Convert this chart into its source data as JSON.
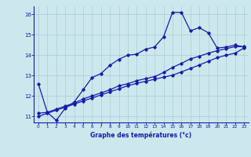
{
  "xlabel": "Graphe des températures (°c)",
  "bg_color": "#cce8ec",
  "grid_color": "#aaccd4",
  "line_color": "#1a1aaa",
  "xlim": [
    -0.5,
    23.5
  ],
  "ylim": [
    10.7,
    16.4
  ],
  "yticks": [
    11,
    12,
    13,
    14,
    15,
    16
  ],
  "xticks": [
    0,
    1,
    2,
    3,
    4,
    5,
    6,
    7,
    8,
    9,
    10,
    11,
    12,
    13,
    14,
    15,
    16,
    17,
    18,
    19,
    20,
    21,
    22,
    23
  ],
  "series1_x": [
    0,
    1,
    2,
    3,
    4,
    5,
    6,
    7,
    8,
    9,
    10,
    11,
    12,
    13,
    14,
    15,
    16,
    17,
    18,
    19,
    20,
    21,
    22,
    23
  ],
  "series1_y": [
    12.6,
    11.2,
    10.8,
    11.4,
    11.7,
    12.3,
    12.9,
    13.1,
    13.5,
    13.8,
    14.0,
    14.05,
    14.3,
    14.4,
    14.9,
    16.1,
    16.1,
    15.2,
    15.35,
    15.1,
    14.35,
    14.4,
    14.5,
    14.4
  ],
  "series2_x": [
    0,
    1,
    2,
    3,
    4,
    5,
    6,
    7,
    8,
    9,
    10,
    11,
    12,
    13,
    14,
    15,
    16,
    17,
    18,
    19,
    20,
    21,
    22,
    23
  ],
  "series2_y": [
    11.0,
    11.15,
    11.3,
    11.45,
    11.6,
    11.75,
    11.9,
    12.05,
    12.2,
    12.35,
    12.5,
    12.62,
    12.72,
    12.82,
    12.92,
    13.02,
    13.18,
    13.35,
    13.52,
    13.7,
    13.88,
    14.0,
    14.1,
    14.35
  ],
  "series3_x": [
    0,
    1,
    2,
    3,
    4,
    5,
    6,
    7,
    8,
    9,
    10,
    11,
    12,
    13,
    14,
    15,
    16,
    17,
    18,
    19,
    20,
    21,
    22,
    23
  ],
  "series3_y": [
    11.15,
    11.2,
    11.35,
    11.5,
    11.65,
    11.85,
    12.0,
    12.15,
    12.3,
    12.5,
    12.6,
    12.75,
    12.85,
    12.95,
    13.15,
    13.4,
    13.6,
    13.82,
    13.95,
    14.1,
    14.22,
    14.32,
    14.42,
    14.42
  ]
}
